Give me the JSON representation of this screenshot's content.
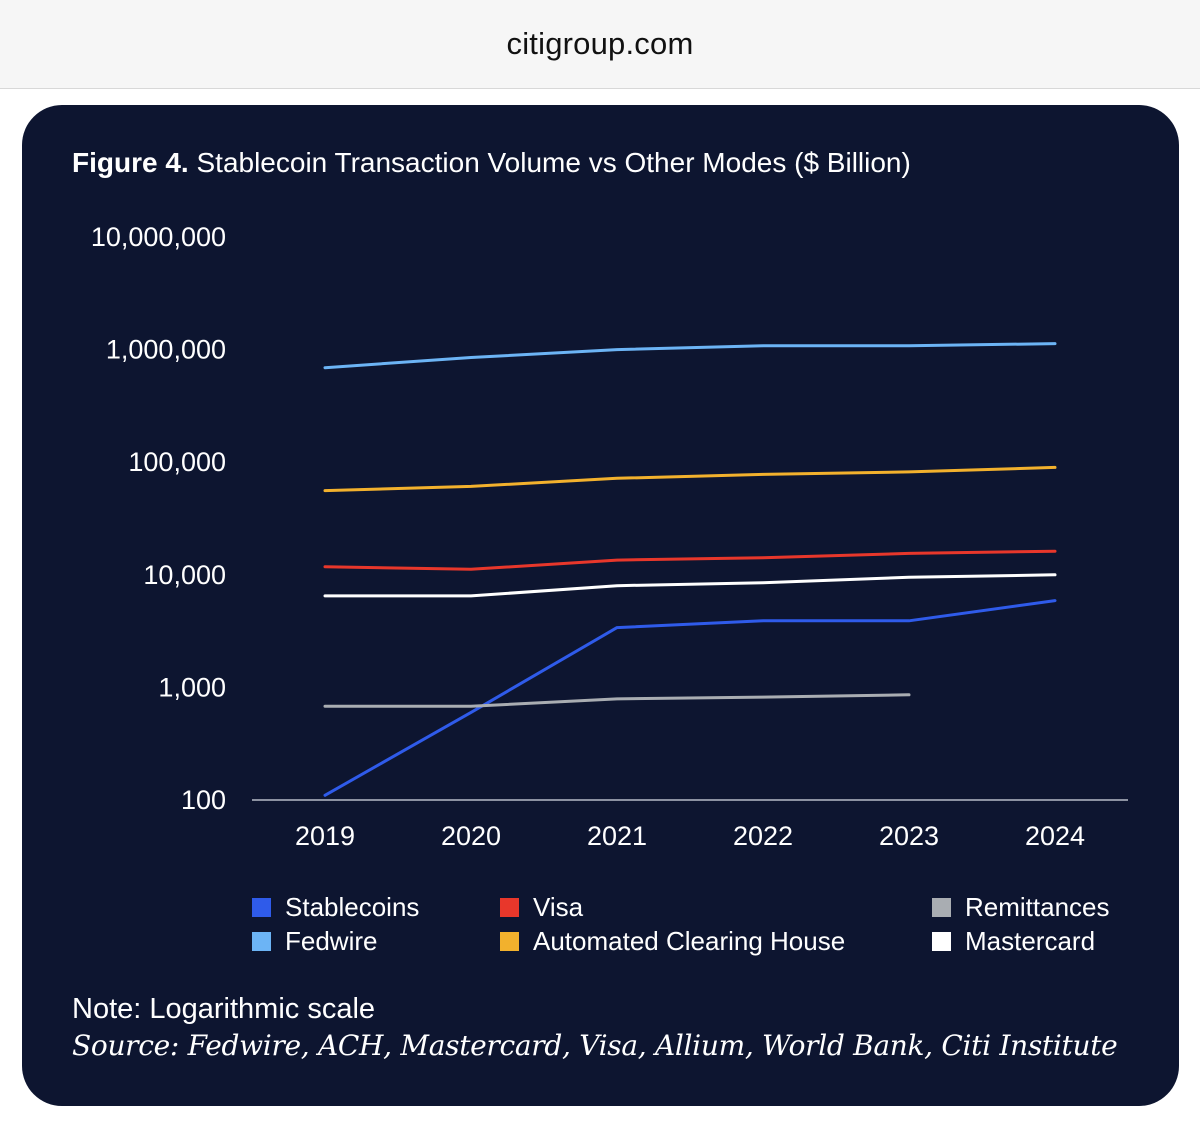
{
  "browser": {
    "url": "citigroup.com"
  },
  "figure": {
    "label": "Figure 4.",
    "title": "Stablecoin Transaction Volume vs Other Modes ($ Billion)",
    "note": "Note: Logarithmic scale",
    "source": "Source: Fedwire, ACH, Mastercard, Visa, Allium, World Bank, Citi Institute"
  },
  "chart_data": {
    "type": "line",
    "title": "Stablecoin Transaction Volume vs Other Modes ($ Billion)",
    "xlabel": "",
    "ylabel": "",
    "y_scale": "log",
    "ylim": [
      100,
      10000000
    ],
    "y_ticks": [
      100,
      1000,
      10000,
      100000,
      1000000,
      10000000
    ],
    "y_tick_labels": [
      "100",
      "1,000",
      "10,000",
      "100,000",
      "1,000,000",
      "10,000,000"
    ],
    "categories": [
      "2019",
      "2020",
      "2021",
      "2022",
      "2023",
      "2024"
    ],
    "grid": false,
    "legend_position": "bottom",
    "series": [
      {
        "name": "Stablecoins",
        "color": "#2f5bea",
        "values": [
          110,
          600,
          3400,
          3900,
          3900,
          5900
        ]
      },
      {
        "name": "Visa",
        "color": "#e8372b",
        "values": [
          11800,
          11200,
          13500,
          14200,
          15500,
          16200
        ]
      },
      {
        "name": "Remittances",
        "color": "#a9adb2",
        "values": [
          680,
          680,
          790,
          820,
          860,
          null
        ]
      },
      {
        "name": "Fedwire",
        "color": "#6cb4f5",
        "values": [
          690000,
          850000,
          1000000,
          1080000,
          1080000,
          1130000
        ]
      },
      {
        "name": "Automated Clearing House",
        "color": "#f2b12d",
        "values": [
          56000,
          61000,
          72000,
          78000,
          82000,
          90000
        ]
      },
      {
        "name": "Mastercard",
        "color": "#ffffff",
        "values": [
          6500,
          6500,
          8000,
          8500,
          9500,
          10000
        ]
      }
    ]
  }
}
